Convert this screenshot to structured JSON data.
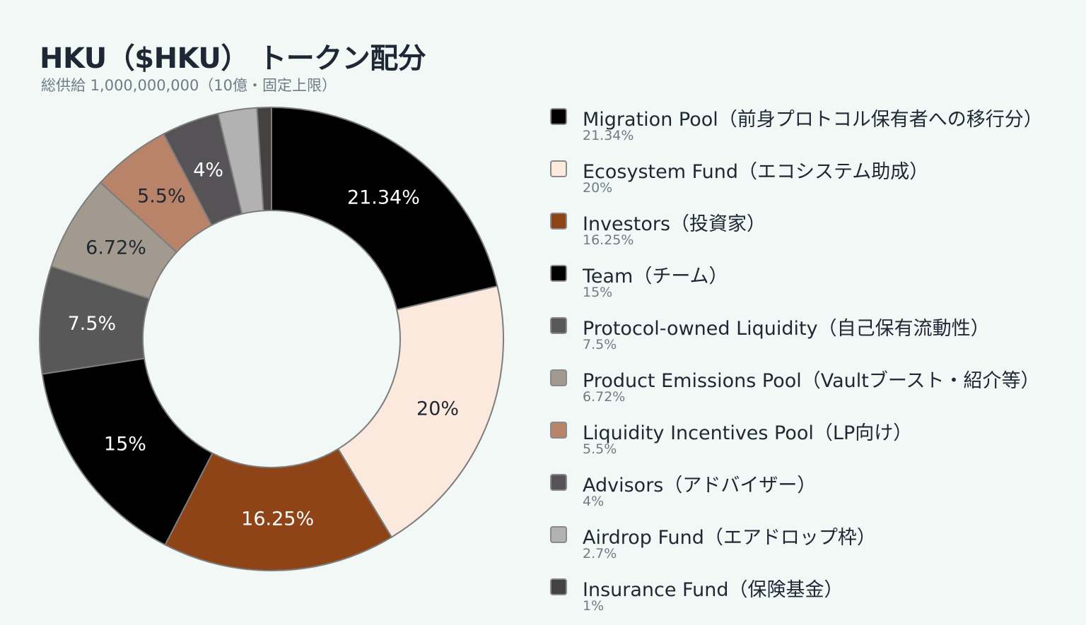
{
  "title": "HKU（$HKU） トークン配分",
  "subtitle": "総供給 1,000,000,000（10億・固定上限）",
  "chart_data": {
    "type": "pie",
    "variant": "donut",
    "title": "HKU（$HKU） トークン配分",
    "subtitle": "総供給 1,000,000,000（10億・固定上限）",
    "unit": "%",
    "legend_position": "right",
    "categories": [
      "Migration Pool（前身プロトコル保有者への移行分）",
      "Ecosystem Fund（エコシステム助成）",
      "Investors（投資家）",
      "Team（チーム）",
      "Protocol-owned Liquidity（自己保有流動性）",
      "Product Emissions Pool（Vaultブースト・紹介等）",
      "Liquidity Incentives Pool（LP向け）",
      "Advisors（アドバイザー）",
      "Airdrop Fund（エアドロップ枠）",
      "Insurance Fund（保険基金）"
    ],
    "values": [
      21.34,
      20,
      16.25,
      15,
      7.5,
      6.72,
      5.5,
      4,
      2.7,
      1
    ],
    "labels": [
      "21.34%",
      "20%",
      "16.25%",
      "15%",
      "7.5%",
      "6.72%",
      "5.5%",
      "4%",
      "2.7%",
      "1%"
    ],
    "show_slice_label": [
      true,
      true,
      true,
      true,
      true,
      true,
      true,
      true,
      false,
      false
    ],
    "colors": [
      "#000000",
      "#fbe9de",
      "#8f4418",
      "#000000",
      "#585858",
      "#a39a8f",
      "#b9836a",
      "#555356",
      "#b2b2b2",
      "#444140"
    ],
    "label_colors": [
      "#ffffff",
      "#1f2733",
      "#ffffff",
      "#ffffff",
      "#ffffff",
      "#1f2733",
      "#1f2733",
      "#ffffff",
      "#1f2733",
      "#ffffff"
    ]
  }
}
